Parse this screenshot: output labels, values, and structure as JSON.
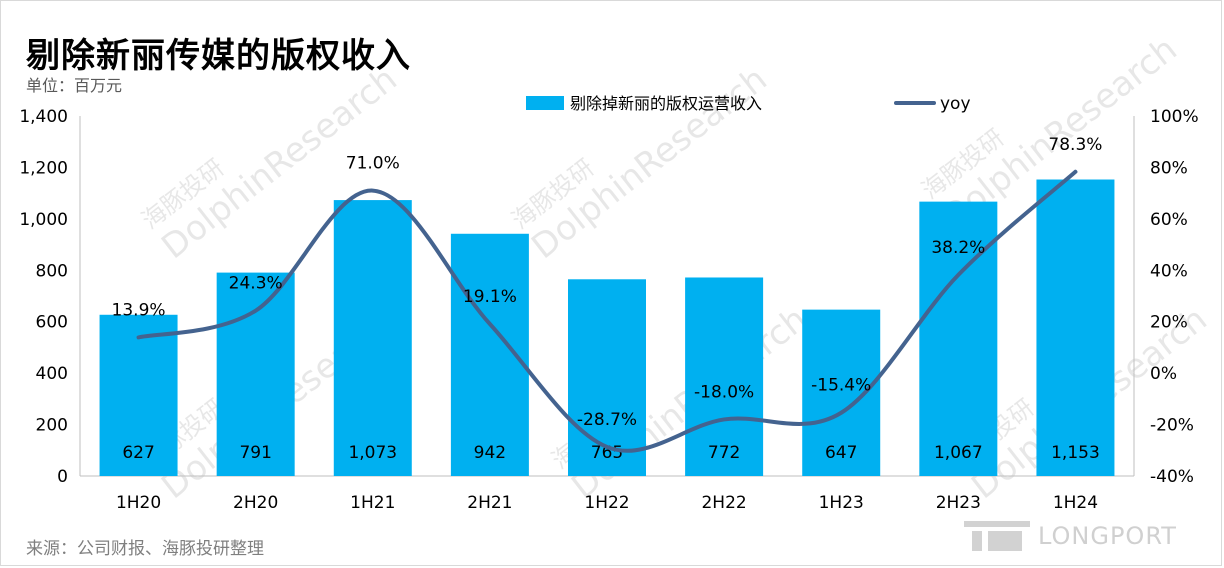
{
  "title": "剔除新丽传媒的版权收入",
  "unit_label": "单位：百万元",
  "source": "来源：公司财报、海豚投研整理",
  "brand": "LONGPORT",
  "watermark": [
    "海豚投研",
    "DolphinResearch"
  ],
  "colors": {
    "bar": "#00b0f0",
    "line": "#44638f",
    "axis": "#595959",
    "text": "#000000"
  },
  "chart_data": {
    "type": "bar",
    "categories": [
      "1H20",
      "2H20",
      "1H21",
      "2H21",
      "1H22",
      "2H22",
      "1H23",
      "2H23",
      "1H24"
    ],
    "series": [
      {
        "name": "剔除掉新丽的版权运营收入",
        "type": "bar",
        "axis": "left",
        "values": [
          627,
          791,
          1073,
          942,
          765,
          772,
          647,
          1067,
          1153
        ],
        "labels": [
          "627",
          "791",
          "1,073",
          "942",
          "765",
          "772",
          "647",
          "1,067",
          "1,153"
        ]
      },
      {
        "name": "yoy",
        "type": "line",
        "axis": "right",
        "values": [
          13.9,
          24.3,
          71.0,
          19.1,
          -28.7,
          -18.0,
          -15.4,
          38.2,
          78.3
        ],
        "labels": [
          "13.9%",
          "24.3%",
          "71.0%",
          "19.1%",
          "-28.7%",
          "-18.0%",
          "-15.4%",
          "38.2%",
          "78.3%"
        ]
      }
    ],
    "y_left": {
      "range": [
        0,
        1400
      ],
      "ticks": [
        0,
        200,
        400,
        600,
        800,
        1000,
        1200,
        1400
      ],
      "tick_labels": [
        "0",
        "200",
        "400",
        "600",
        "800",
        "1,000",
        "1,200",
        "1,400"
      ]
    },
    "y_right": {
      "range": [
        -40,
        100
      ],
      "ticks": [
        -40,
        -20,
        0,
        20,
        40,
        60,
        80,
        100
      ],
      "tick_labels": [
        "-40%",
        "-20%",
        "0%",
        "20%",
        "40%",
        "60%",
        "80%",
        "100%"
      ]
    },
    "legend_position": "top",
    "grid": false,
    "smooth_line": true
  }
}
